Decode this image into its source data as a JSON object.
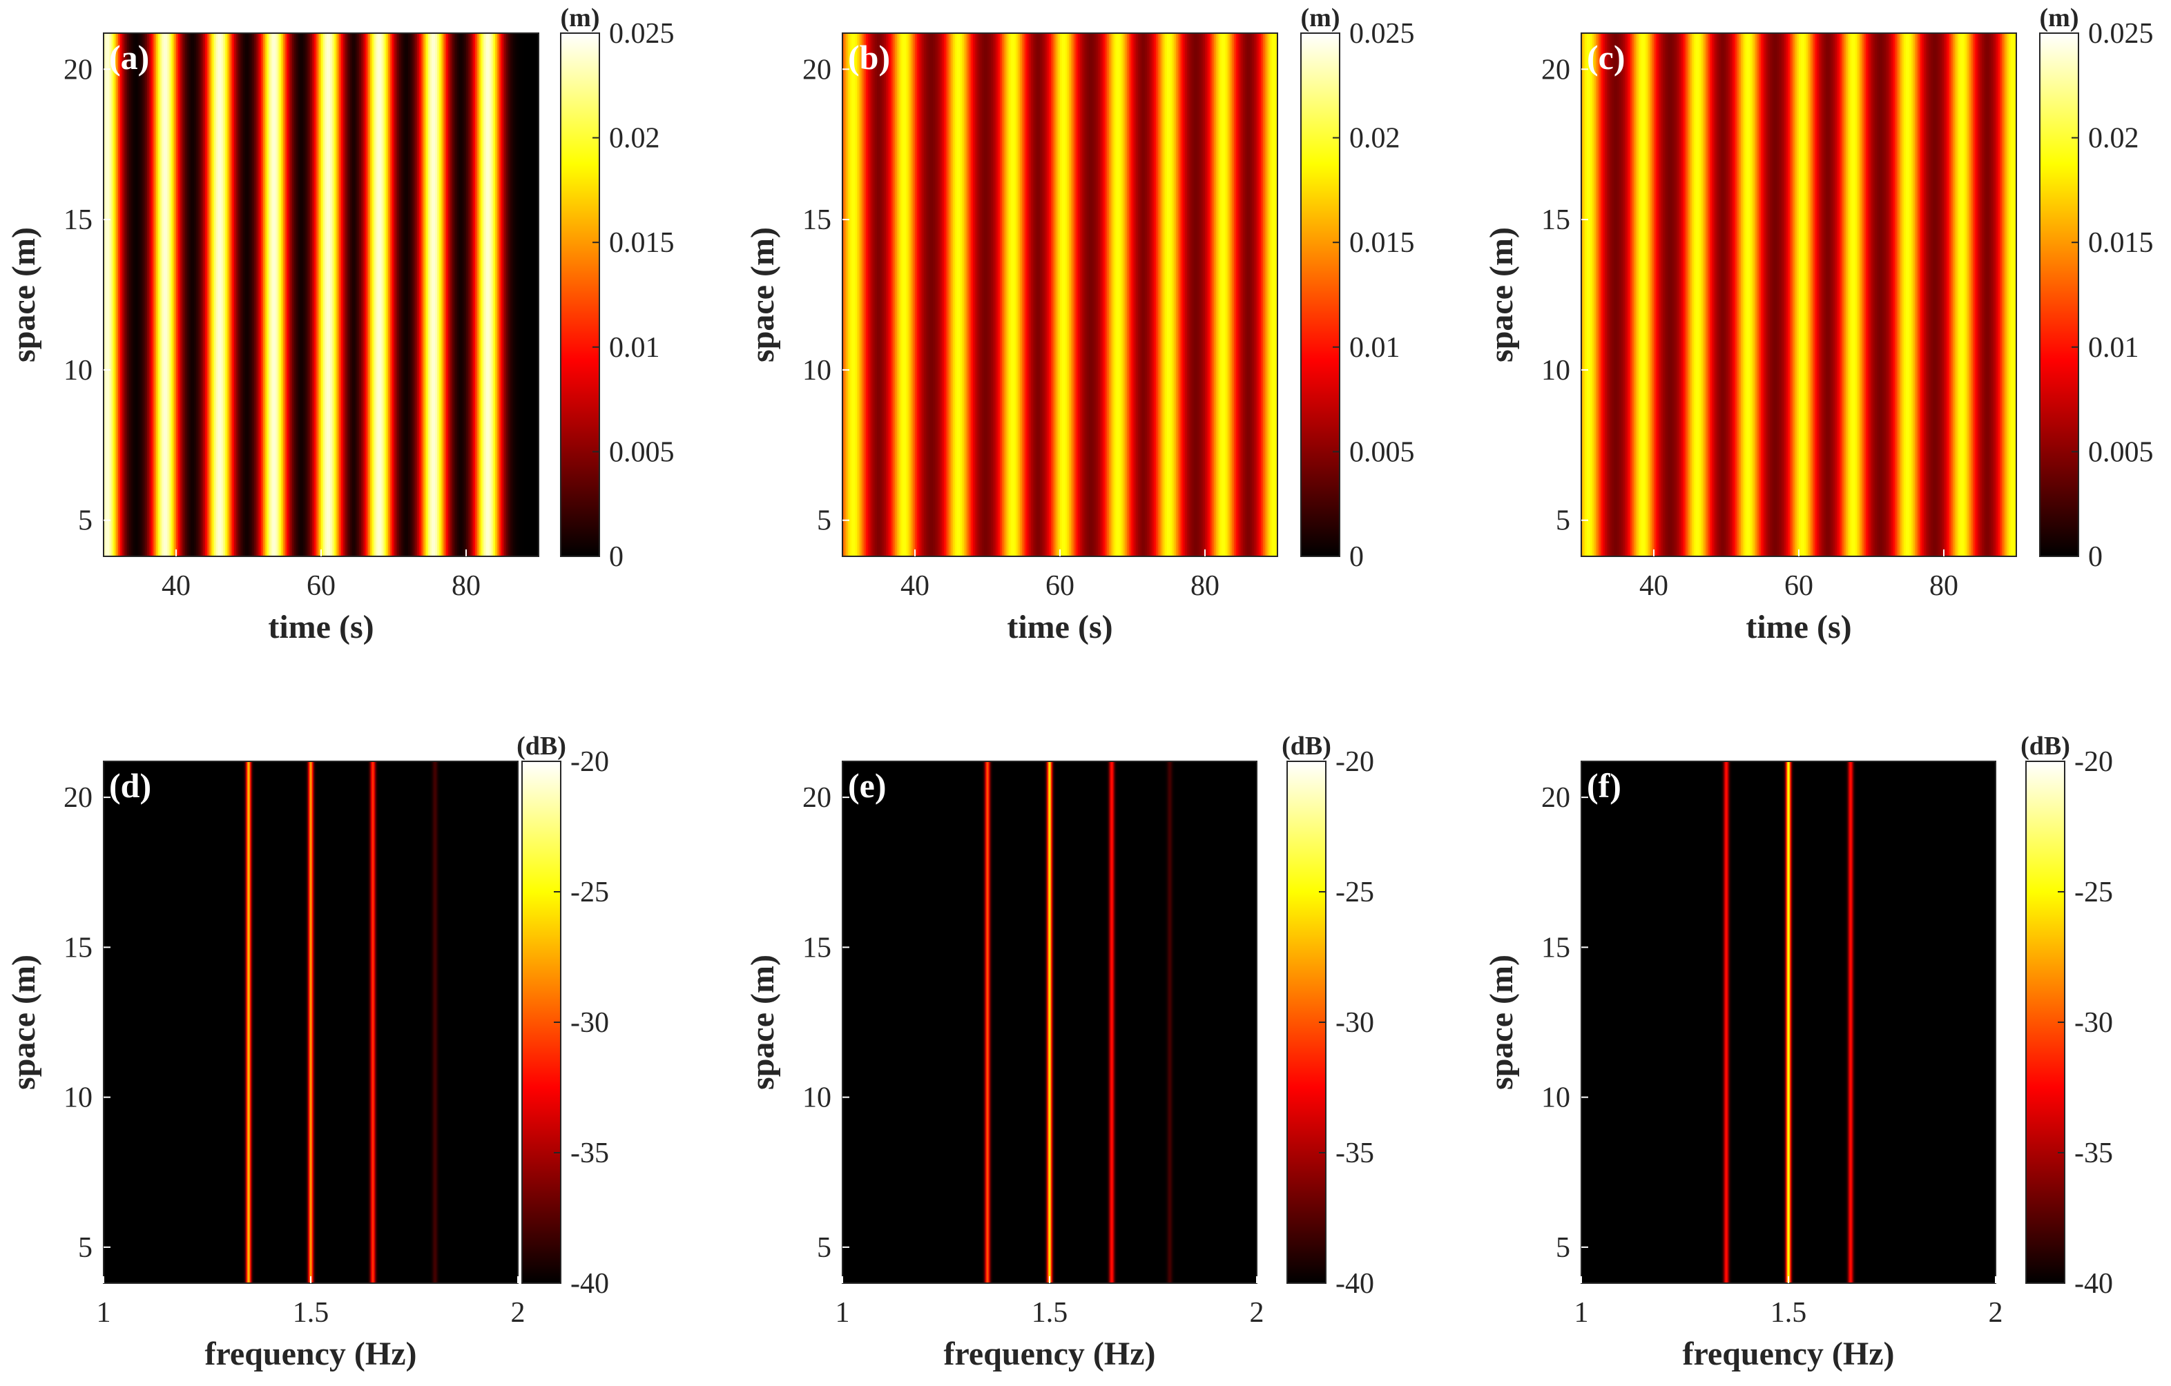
{
  "chart_data": [
    {
      "type": "heatmap",
      "panel_label": "(a)",
      "xlabel": "time (s)",
      "ylabel": "space (m)",
      "colorbar_unit": "(m)",
      "xlim": [
        30,
        90
      ],
      "ylim": [
        3.8,
        21.2
      ],
      "xticks": [
        "40",
        "60",
        "80"
      ],
      "yticks": [
        "5",
        "10",
        "15",
        "20"
      ],
      "colorbar_ticks": [
        "0",
        "0.005",
        "0.01",
        "0.015",
        "0.02",
        "0.025"
      ],
      "clim": [
        0,
        0.025
      ],
      "field": "wave",
      "crests_s": [
        30.5,
        38.5,
        46,
        53.5,
        61,
        68,
        75.5,
        83
      ],
      "peak": 0.024,
      "floor": 0.0
    },
    {
      "type": "heatmap",
      "panel_label": "(b)",
      "xlabel": "time (s)",
      "ylabel": "space (m)",
      "colorbar_unit": "(m)",
      "xlim": [
        30,
        90
      ],
      "ylim": [
        3.8,
        21.2
      ],
      "xticks": [
        "40",
        "60",
        "80"
      ],
      "yticks": [
        "5",
        "10",
        "15",
        "20"
      ],
      "colorbar_ticks": [
        "0",
        "0.005",
        "0.01",
        "0.015",
        "0.02",
        "0.025"
      ],
      "clim": [
        0,
        0.025
      ],
      "field": "wave",
      "crests_s": [
        31.5,
        38.5,
        46,
        53.5,
        60.5,
        68,
        75,
        82.5,
        89.5
      ],
      "peak": 0.019,
      "floor": 0.004
    },
    {
      "type": "heatmap",
      "panel_label": "(c)",
      "xlabel": "time (s)",
      "ylabel": "space (m)",
      "colorbar_unit": "(m)",
      "xlim": [
        30,
        90
      ],
      "ylim": [
        3.8,
        21.2
      ],
      "xticks": [
        "40",
        "60",
        "80"
      ],
      "yticks": [
        "5",
        "10",
        "15",
        "20"
      ],
      "colorbar_ticks": [
        "0",
        "0.005",
        "0.01",
        "0.015",
        "0.02",
        "0.025"
      ],
      "clim": [
        0,
        0.025
      ],
      "field": "wave",
      "crests_s": [
        31,
        38.5,
        46,
        53,
        60.5,
        67.5,
        75,
        82.5,
        89.5
      ],
      "peak": 0.019,
      "floor": 0.004
    },
    {
      "type": "heatmap",
      "panel_label": "(d)",
      "xlabel": "frequency (Hz)",
      "ylabel": "space (m)",
      "colorbar_unit": "(dB)",
      "xlim": [
        1,
        2
      ],
      "ylim": [
        3.8,
        21.2
      ],
      "xticks": [
        "1",
        "1.5",
        "2"
      ],
      "yticks": [
        "5",
        "10",
        "15",
        "20"
      ],
      "colorbar_ticks": [
        "-40",
        "-35",
        "-30",
        "-25",
        "-20"
      ],
      "clim": [
        -40,
        -20
      ],
      "field": "spectrum",
      "lines": [
        {
          "freq_hz": 1.35,
          "level_db": -27
        },
        {
          "freq_hz": 1.5,
          "level_db": -28
        },
        {
          "freq_hz": 1.65,
          "level_db": -31
        },
        {
          "freq_hz": 1.8,
          "level_db": -38
        }
      ]
    },
    {
      "type": "heatmap",
      "panel_label": "(e)",
      "xlabel": "frequency (Hz)",
      "ylabel": "space (m)",
      "colorbar_unit": "(dB)",
      "xlim": [
        1,
        2
      ],
      "ylim": [
        3.8,
        21.2
      ],
      "xticks": [
        "1",
        "1.5",
        "2"
      ],
      "yticks": [
        "5",
        "10",
        "15",
        "20"
      ],
      "colorbar_ticks": [
        "-40",
        "-35",
        "-30",
        "-25",
        "-20"
      ],
      "clim": [
        -40,
        -20
      ],
      "field": "spectrum",
      "lines": [
        {
          "freq_hz": 1.35,
          "level_db": -30
        },
        {
          "freq_hz": 1.5,
          "level_db": -26
        },
        {
          "freq_hz": 1.65,
          "level_db": -32
        },
        {
          "freq_hz": 1.79,
          "level_db": -38
        }
      ]
    },
    {
      "type": "heatmap",
      "panel_label": "(f)",
      "xlabel": "frequency (Hz)",
      "ylabel": "space (m)",
      "colorbar_unit": "(dB)",
      "xlim": [
        1,
        2
      ],
      "ylim": [
        3.8,
        21.2
      ],
      "xticks": [
        "1",
        "1.5",
        "2"
      ],
      "yticks": [
        "5",
        "10",
        "15",
        "20"
      ],
      "colorbar_ticks": [
        "-40",
        "-35",
        "-30",
        "-25",
        "-20"
      ],
      "clim": [
        -40,
        -20
      ],
      "field": "spectrum",
      "lines": [
        {
          "freq_hz": 1.35,
          "level_db": -32
        },
        {
          "freq_hz": 1.5,
          "level_db": -25
        },
        {
          "freq_hz": 1.65,
          "level_db": -32
        }
      ]
    }
  ]
}
